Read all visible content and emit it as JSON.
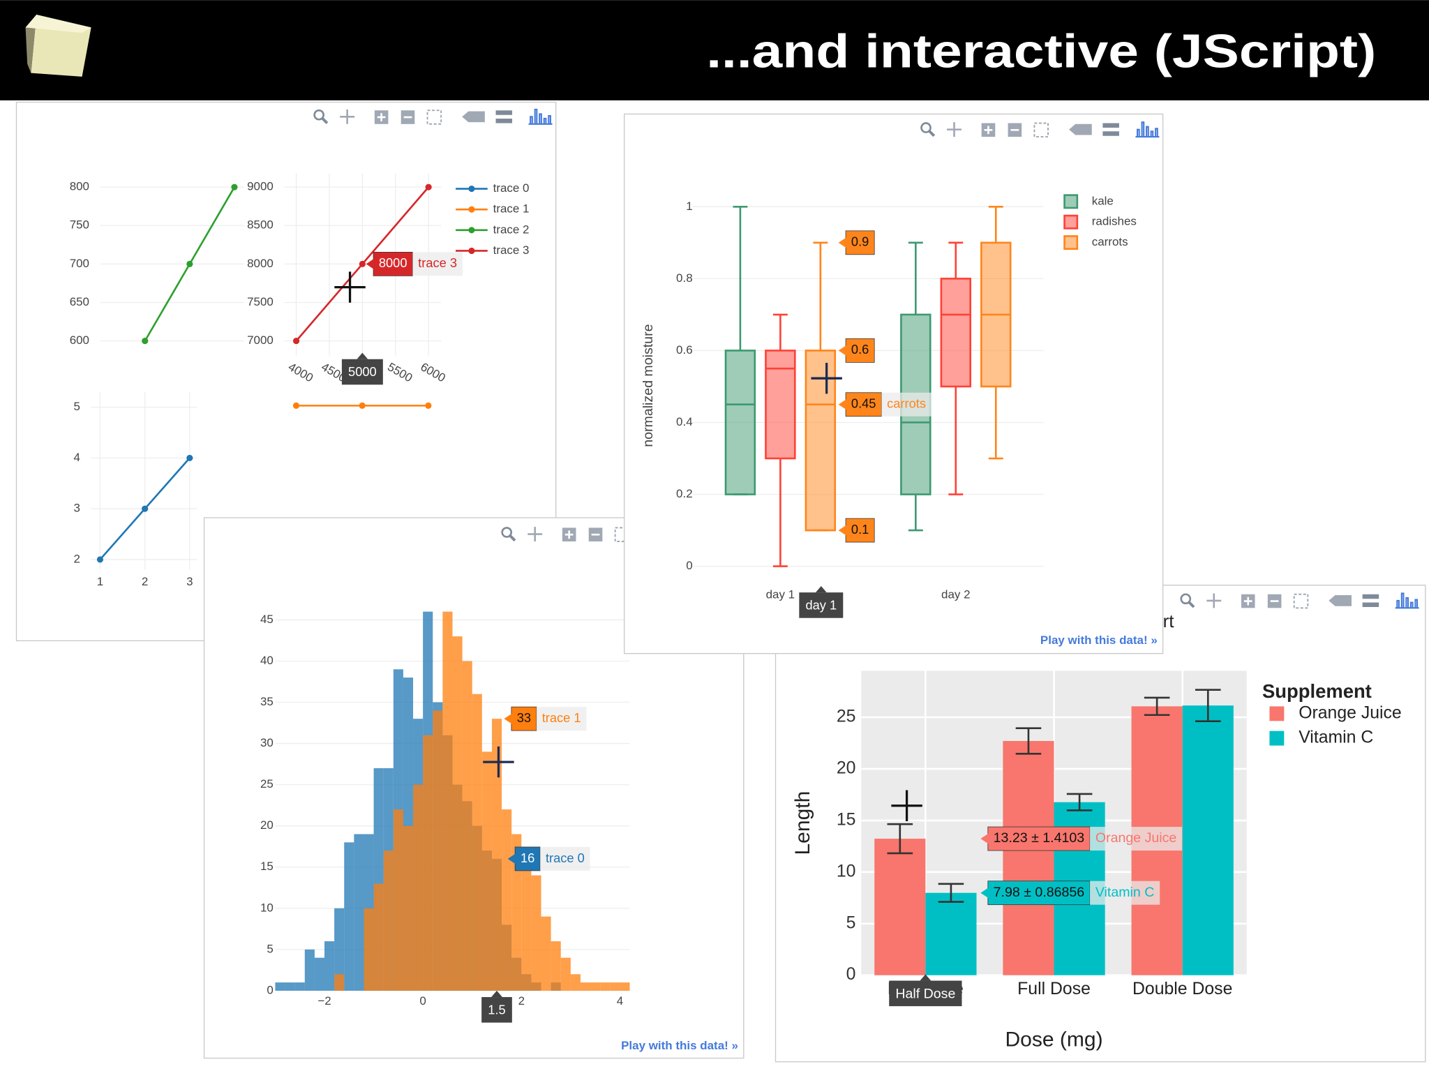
{
  "slide": {
    "title": "...and interactive (JScript)"
  },
  "chart_data": [
    {
      "type": "line",
      "subplots": {
        "top-left": {
          "xlim": [
            200,
            522
          ],
          "ylim": [
            581,
            818
          ],
          "yticks": [
            600,
            650,
            700,
            750,
            800
          ]
        },
        "top-right": {
          "xlim": [
            3820,
            6190
          ],
          "ylim": [
            6810,
            9180
          ],
          "xticks": [
            4000,
            4500,
            5000,
            5500,
            6000
          ],
          "yticks": [
            7000,
            7500,
            8000,
            8500,
            9000
          ]
        },
        "bottom-left": {
          "xlim": [
            0.8,
            3.16
          ],
          "ylim": [
            1.8,
            5.3
          ],
          "xticks": [
            1,
            2,
            3
          ],
          "yticks": [
            2,
            3,
            4,
            5
          ]
        },
        "bottom-right": {
          "xlim": [
            20,
            40
          ],
          "ylim": [
            0,
            76
          ]
        }
      },
      "series": [
        {
          "name": "trace 0",
          "color": "#1f77b4",
          "axes": "bottom-left",
          "x": [
            1,
            2,
            3
          ],
          "values": [
            2,
            3,
            4
          ]
        },
        {
          "name": "trace 1",
          "color": "#ff7f0e",
          "axes": "bottom-right",
          "x": [
            20,
            30,
            40
          ],
          "values": [
            70,
            70,
            70
          ]
        },
        {
          "name": "trace 2",
          "color": "#2ca02c",
          "axes": "top-left",
          "x": [
            300,
            400,
            500
          ],
          "values": [
            600,
            700,
            800
          ]
        },
        {
          "name": "trace 3",
          "color": "#d62728",
          "axes": "top-right",
          "x": [
            4000,
            5000,
            6000
          ],
          "values": [
            7000,
            8000,
            9000
          ]
        }
      ],
      "legend": "top-right",
      "grid": true,
      "hover": {
        "axes": "top-right",
        "x": 5000,
        "points": [
          {
            "value": 8000,
            "name": "trace 3",
            "color": "#d62728"
          }
        ]
      }
    },
    {
      "type": "bar",
      "title": "rt",
      "categories": [
        "Half Dose",
        "Full Dose",
        "Double Dose"
      ],
      "series": [
        {
          "name": "Orange Juice",
          "color": "#f8766d",
          "values": [
            13.23,
            22.7,
            26.06
          ],
          "errors": [
            1.4103,
            1.2367,
            0.8396
          ]
        },
        {
          "name": "Vitamin C",
          "color": "#00bfc4",
          "values": [
            7.98,
            16.77,
            26.14
          ],
          "errors": [
            0.86856,
            0.7954,
            1.5212
          ]
        }
      ],
      "ylim": [
        0,
        29.5
      ],
      "yticks": [
        0,
        5,
        10,
        15,
        20,
        25
      ],
      "xlabel": "Dose (mg)",
      "ylabel": "Length",
      "legend_title": "Supplement",
      "legend": "right",
      "grid": true,
      "hover": {
        "x": "Half Dose",
        "points": [
          {
            "label": "13.23 ± 1.4103",
            "name": "Orange Juice"
          },
          {
            "label": "7.98 ± 0.86856",
            "name": "Vitamin C"
          }
        ]
      }
    },
    {
      "type": "histogram",
      "bins": [
        -3,
        -2.8,
        -2.6,
        -2.4,
        -2.2,
        -2,
        -1.8,
        -1.6,
        -1.4,
        -1.2,
        -1,
        -0.8,
        -0.6,
        -0.4,
        -0.2,
        0,
        0.2,
        0.4,
        0.6,
        0.8,
        1,
        1.2,
        1.4,
        1.6,
        1.8,
        2,
        2.2,
        2.4,
        2.6,
        2.8,
        3,
        3.2,
        3.4,
        3.6,
        3.8,
        4,
        4.2
      ],
      "series": [
        {
          "name": "trace 0",
          "color": "#1f77b4",
          "values": [
            1,
            1,
            1,
            5,
            4,
            6,
            10,
            18,
            19,
            19,
            27,
            27,
            39,
            38,
            33,
            46,
            35,
            31,
            25,
            23,
            20,
            17,
            16,
            8,
            4,
            2,
            1,
            0,
            1,
            0,
            0,
            0,
            0,
            0,
            0,
            0
          ]
        },
        {
          "name": "trace 1",
          "color": "#ff7f0e",
          "values": [
            0,
            0,
            0,
            0,
            0,
            0,
            2,
            0,
            0,
            10,
            13,
            17,
            22,
            20,
            25,
            31,
            34,
            46,
            43,
            40,
            36,
            29,
            33,
            22,
            19,
            17,
            14,
            9,
            6,
            4,
            2,
            1,
            1,
            1,
            1,
            1
          ]
        }
      ],
      "opacity": 0.75,
      "xlim": [
        -3,
        4.2
      ],
      "ylim": [
        0,
        47
      ],
      "xticks": [
        {
          "value": -2,
          "label": "−2"
        },
        0,
        2,
        4
      ],
      "yticks": [
        0,
        5,
        10,
        15,
        20,
        25,
        30,
        35,
        40,
        45
      ],
      "grid": true,
      "link": "Play with this data! »",
      "hover": {
        "x": 1.5,
        "points": [
          {
            "value": 33,
            "name": "trace 1",
            "color": "#ff7f0e"
          },
          {
            "value": 16,
            "name": "trace 0",
            "color": "#1f77b4"
          }
        ]
      }
    },
    {
      "type": "box",
      "categories": [
        "day 1",
        "day 2"
      ],
      "series": [
        {
          "name": "kale",
          "color": "#3d9970",
          "min": [
            0.2,
            0.1
          ],
          "q1": [
            0.2,
            0.2
          ],
          "median": [
            0.45,
            0.4
          ],
          "q3": [
            0.6,
            0.7
          ],
          "max": [
            1,
            0.9
          ]
        },
        {
          "name": "radishes",
          "color": "#ff4136",
          "min": [
            0,
            0.2
          ],
          "q1": [
            0.3,
            0.5
          ],
          "median": [
            0.55,
            0.7
          ],
          "q3": [
            0.6,
            0.8
          ],
          "max": [
            0.7,
            0.9
          ]
        },
        {
          "name": "carrots",
          "color": "#ff851b",
          "min": [
            0.1,
            0.3
          ],
          "q1": [
            0.1,
            0.5
          ],
          "median": [
            0.45,
            0.7
          ],
          "q3": [
            0.6,
            0.9
          ],
          "max": [
            0.9,
            1
          ]
        }
      ],
      "ylim": [
        -0.05,
        1.05
      ],
      "yticks": [
        0,
        0.2,
        0.4,
        0.6,
        0.8,
        1
      ],
      "ylabel": "normalized moisture",
      "legend": "top-right",
      "grid": true,
      "link": "Play with this data! »",
      "hover": {
        "x": "day 1",
        "color": "#ff851b",
        "points": [
          {
            "value": 0.9
          },
          {
            "value": 0.6
          },
          {
            "value": 0.45,
            "name": "carrots"
          },
          {
            "value": 0.1
          }
        ]
      }
    }
  ]
}
